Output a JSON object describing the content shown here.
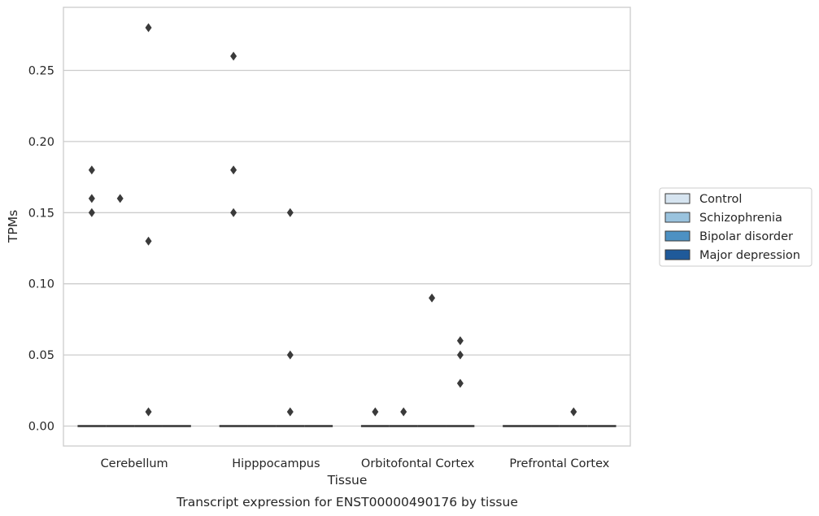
{
  "chart_data": {
    "type": "box",
    "title": "",
    "caption": "Transcript expression for ENST00000490176 by tissue",
    "xlabel": "Tissue",
    "ylabel": "TPMs",
    "ylim": [
      -0.014,
      0.295
    ],
    "yticks": [
      "0.00",
      "0.05",
      "0.10",
      "0.15",
      "0.20",
      "0.25"
    ],
    "ytick_values": [
      0.0,
      0.05,
      0.1,
      0.15,
      0.2,
      0.25
    ],
    "grid": "horizontal",
    "legend_position": "right",
    "categories": [
      "Cerebellum",
      "Hipppocampus",
      "Orbitofontal Cortex",
      "Prefrontal Cortex"
    ],
    "series": [
      {
        "name": "Control",
        "color": "#d6e4f0",
        "medians": [
          0,
          0,
          0,
          0
        ],
        "outliers": [
          [
            0.15,
            0.16,
            0.18
          ],
          [
            0.15,
            0.18,
            0.26
          ],
          [
            0.01
          ],
          []
        ]
      },
      {
        "name": "Schizophrenia",
        "color": "#9ac3de",
        "medians": [
          0,
          0,
          0,
          0
        ],
        "outliers": [
          [
            0.16
          ],
          [],
          [
            0.01
          ],
          []
        ]
      },
      {
        "name": "Bipolar disorder",
        "color": "#4d91c3",
        "medians": [
          0,
          0,
          0,
          0
        ],
        "outliers": [
          [
            0.01,
            0.13,
            0.28
          ],
          [
            0.01,
            0.05,
            0.15
          ],
          [
            0.09
          ],
          [
            0.01
          ]
        ]
      },
      {
        "name": "Major depression",
        "color": "#1f5a9a",
        "medians": [
          0,
          0,
          0,
          0
        ],
        "outliers": [
          [],
          [],
          [
            0.03,
            0.05
          ],
          []
        ]
      }
    ],
    "extra_outliers": [
      {
        "category": "Orbitofontal Cortex",
        "series": "Major depression",
        "value": 0.06
      }
    ]
  }
}
